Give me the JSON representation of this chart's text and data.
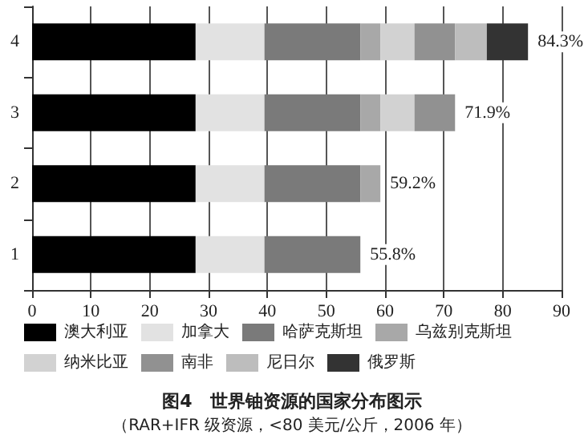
{
  "chart_data": {
    "type": "bar",
    "orientation": "horizontal",
    "stacked": true,
    "title": "图4　世界铀资源的国家分布图示",
    "subtitle": "（RAR+IFR 级资源，<80 美元/公斤，2006 年）",
    "categories": [
      "4",
      "3",
      "2",
      "1"
    ],
    "series": [
      {
        "name": "澳大利亚",
        "color": "#000000",
        "values": [
          27.8,
          27.8,
          27.8,
          27.8
        ]
      },
      {
        "name": "加拿大",
        "color": "#e2e2e2",
        "values": [
          11.7,
          11.7,
          11.7,
          11.7
        ]
      },
      {
        "name": "哈萨克斯坦",
        "color": "#7a7a7a",
        "values": [
          16.3,
          16.3,
          16.3,
          16.3
        ]
      },
      {
        "name": "乌兹别克斯坦",
        "color": "#a8a8a8",
        "values": [
          3.4,
          3.4,
          3.4,
          null
        ]
      },
      {
        "name": "纳米比亚",
        "color": "#d2d2d2",
        "values": [
          5.8,
          5.8,
          null,
          null
        ]
      },
      {
        "name": "南非",
        "color": "#919191",
        "values": [
          6.9,
          6.9,
          null,
          null
        ]
      },
      {
        "name": "尼日尔",
        "color": "#bdbdbd",
        "values": [
          5.4,
          null,
          null,
          null
        ]
      },
      {
        "name": "俄罗斯",
        "color": "#333333",
        "values": [
          7.0,
          null,
          null,
          null
        ]
      }
    ],
    "totals": [
      "84.3%",
      "71.9%",
      "59.2%",
      "55.8%"
    ],
    "xlim": [
      0,
      90
    ],
    "xticks": [
      0,
      10,
      20,
      30,
      40,
      50,
      60,
      70,
      80,
      90
    ],
    "grid": "x",
    "legend": "bottom"
  }
}
